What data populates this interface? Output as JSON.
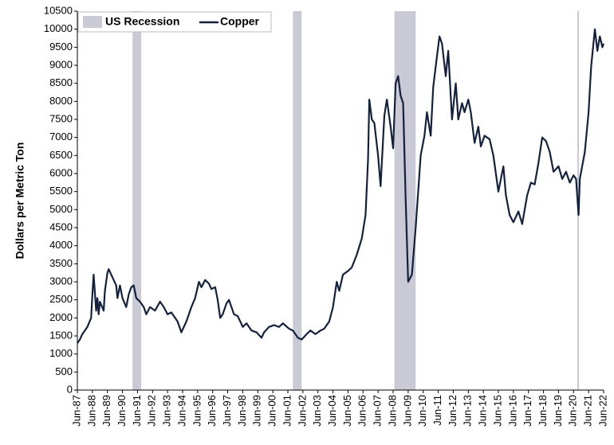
{
  "chart_data": {
    "type": "line",
    "y_label": "Dollars per Metric Ton",
    "x": [
      "1987-06",
      "1987-08",
      "1987-10",
      "1988-02",
      "1988-05",
      "1988-06",
      "1988-07",
      "1988-09",
      "1988-10",
      "1988-11",
      "1988-12",
      "1989-03",
      "1989-04",
      "1989-06",
      "1989-07",
      "1989-09",
      "1990-01",
      "1990-02",
      "1990-04",
      "1990-06",
      "1990-09",
      "1990-11",
      "1991-01",
      "1991-03",
      "1991-05",
      "1991-08",
      "1991-11",
      "1992-01",
      "1992-04",
      "1992-08",
      "1992-12",
      "1993-03",
      "1993-06",
      "1993-09",
      "1994-02",
      "1994-05",
      "1994-09",
      "1995-01",
      "1995-04",
      "1995-07",
      "1995-09",
      "1995-12",
      "1996-03",
      "1996-05",
      "1996-08",
      "1996-10",
      "1996-12",
      "1997-02",
      "1997-05",
      "1997-07",
      "1997-11",
      "1998-02",
      "1998-06",
      "1998-09",
      "1999-01",
      "1999-05",
      "1999-09",
      "1999-11",
      "2000-03",
      "2000-07",
      "2000-11",
      "2001-02",
      "2001-07",
      "2001-10",
      "2002-02",
      "2002-05",
      "2002-09",
      "2002-12",
      "2003-04",
      "2003-08",
      "2003-11",
      "2004-03",
      "2004-06",
      "2004-09",
      "2004-11",
      "2005-02",
      "2005-06",
      "2005-09",
      "2006-01",
      "2006-05",
      "2006-08",
      "2006-10",
      "2006-11",
      "2007-01",
      "2007-03",
      "2007-06",
      "2007-08",
      "2007-11",
      "2008-01",
      "2008-04",
      "2008-06",
      "2008-08",
      "2008-10",
      "2008-12",
      "2009-02",
      "2009-04",
      "2009-06",
      "2009-09",
      "2009-12",
      "2010-02",
      "2010-04",
      "2010-07",
      "2010-09",
      "2010-12",
      "2011-02",
      "2011-05",
      "2011-07",
      "2011-09",
      "2011-12",
      "2012-02",
      "2012-05",
      "2012-08",
      "2012-10",
      "2013-01",
      "2013-03",
      "2013-06",
      "2013-08",
      "2013-11",
      "2014-02",
      "2014-04",
      "2014-07",
      "2014-11",
      "2015-02",
      "2015-06",
      "2015-10",
      "2015-12",
      "2016-03",
      "2016-06",
      "2016-10",
      "2017-01",
      "2017-05",
      "2017-08",
      "2017-11",
      "2018-02",
      "2018-05",
      "2018-08",
      "2018-11",
      "2019-02",
      "2019-06",
      "2019-09",
      "2019-12",
      "2020-03",
      "2020-06",
      "2020-08",
      "2020-10",
      "2020-11",
      "2021-03",
      "2021-06",
      "2021-08",
      "2021-11",
      "2022-01",
      "2022-03",
      "2022-05",
      "2022-06"
    ],
    "series": [
      {
        "name": "Copper",
        "color": "#14213d",
        "values": [
          1300,
          1400,
          1550,
          1750,
          2000,
          2650,
          3200,
          2200,
          2550,
          2100,
          2450,
          2200,
          2750,
          3250,
          3350,
          3200,
          2900,
          2550,
          2900,
          2550,
          2300,
          2650,
          2850,
          2900,
          2550,
          2450,
          2300,
          2100,
          2300,
          2200,
          2450,
          2300,
          2100,
          2150,
          1900,
          1600,
          1900,
          2300,
          2550,
          3000,
          2850,
          3050,
          2950,
          2800,
          2850,
          2500,
          2000,
          2100,
          2400,
          2500,
          2100,
          2050,
          1750,
          1850,
          1650,
          1600,
          1450,
          1600,
          1750,
          1800,
          1750,
          1850,
          1700,
          1650,
          1450,
          1400,
          1550,
          1650,
          1550,
          1650,
          1700,
          1900,
          2300,
          3000,
          2750,
          3200,
          3300,
          3400,
          3750,
          4200,
          4850,
          6400,
          8050,
          7500,
          7400,
          6500,
          5650,
          7600,
          8050,
          7300,
          6700,
          8500,
          8700,
          8150,
          7950,
          5300,
          3000,
          3200,
          4500,
          5500,
          6500,
          7050,
          7700,
          7050,
          8400,
          9250,
          9800,
          9600,
          8700,
          9400,
          7500,
          8500,
          7500,
          7950,
          7700,
          8050,
          7700,
          6850,
          7300,
          6750,
          7050,
          6950,
          6500,
          5500,
          6200,
          5400,
          4850,
          4650,
          4950,
          4600,
          5400,
          5750,
          5700,
          6300,
          7000,
          6900,
          6600,
          6050,
          6200,
          5850,
          6050,
          5750,
          5950,
          5850,
          4850,
          5850,
          6600,
          7700,
          8950,
          10000,
          9400,
          9800,
          9500,
          9600
        ]
      }
    ],
    "recessions": {
      "name": "US Recession",
      "color": "#c9cad6",
      "periods": [
        {
          "start": "1991-02",
          "end": "1991-09"
        },
        {
          "start": "2001-10",
          "end": "2002-05"
        },
        {
          "start": "2008-07",
          "end": "2009-12"
        },
        {
          "start": "2020-09",
          "end": "2020-10"
        }
      ]
    },
    "xlim": [
      "1987-06",
      "2022-06"
    ],
    "xticks": [
      {
        "value": "1987-06",
        "label": "Jun-87"
      },
      {
        "value": "1988-06",
        "label": "Jun-88"
      },
      {
        "value": "1989-06",
        "label": "Jun-89"
      },
      {
        "value": "1990-06",
        "label": "Jun-90"
      },
      {
        "value": "1991-06",
        "label": "Jun-91"
      },
      {
        "value": "1992-06",
        "label": "Jun-92"
      },
      {
        "value": "1993-06",
        "label": "Jun-93"
      },
      {
        "value": "1994-06",
        "label": "Jun-94"
      },
      {
        "value": "1995-06",
        "label": "Jun-95"
      },
      {
        "value": "1996-06",
        "label": "Jun-96"
      },
      {
        "value": "1997-06",
        "label": "Jun-97"
      },
      {
        "value": "1998-06",
        "label": "Jun-98"
      },
      {
        "value": "1999-06",
        "label": "Jun-99"
      },
      {
        "value": "2000-06",
        "label": "Jun-00"
      },
      {
        "value": "2001-06",
        "label": "Jun-01"
      },
      {
        "value": "2002-06",
        "label": "Jun-02"
      },
      {
        "value": "2003-06",
        "label": "Jun-03"
      },
      {
        "value": "2004-06",
        "label": "Jun-04"
      },
      {
        "value": "2005-06",
        "label": "Jun-05"
      },
      {
        "value": "2006-06",
        "label": "Jun-06"
      },
      {
        "value": "2007-06",
        "label": "Jun-07"
      },
      {
        "value": "2008-06",
        "label": "Jun-08"
      },
      {
        "value": "2009-06",
        "label": "Jun-09"
      },
      {
        "value": "2010-06",
        "label": "Jun-10"
      },
      {
        "value": "2011-06",
        "label": "Jun-11"
      },
      {
        "value": "2012-06",
        "label": "Jun-12"
      },
      {
        "value": "2013-06",
        "label": "Jun-13"
      },
      {
        "value": "2014-06",
        "label": "Jun-14"
      },
      {
        "value": "2015-06",
        "label": "Jun-15"
      },
      {
        "value": "2016-06",
        "label": "Jun-16"
      },
      {
        "value": "2017-06",
        "label": "Jun-17"
      },
      {
        "value": "2018-06",
        "label": "Jun-18"
      },
      {
        "value": "2019-06",
        "label": "Jun-19"
      },
      {
        "value": "2020-06",
        "label": "Jun-20"
      },
      {
        "value": "2021-06",
        "label": "Jun-21"
      },
      {
        "value": "2022-06",
        "label": "Jun-22"
      }
    ],
    "ylim": [
      0,
      10500
    ],
    "yticks": [
      0,
      500,
      1000,
      1500,
      2000,
      2500,
      3000,
      3500,
      4000,
      4500,
      5000,
      5500,
      6000,
      6500,
      7000,
      7500,
      8000,
      8500,
      9000,
      9500,
      10000,
      10500
    ],
    "grid": false,
    "legend": "top-left"
  }
}
